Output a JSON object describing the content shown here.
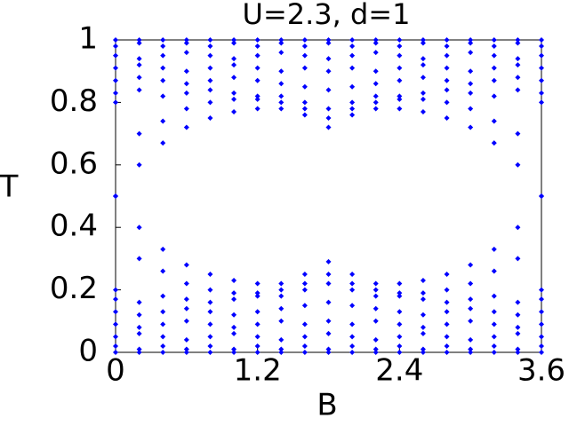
{
  "chart_data": {
    "type": "scatter",
    "title": "U=2.3, d=1",
    "xlabel": "B",
    "ylabel": "T",
    "color": "#0000ff",
    "xlim": [
      0,
      3.6
    ],
    "xticks": [
      0,
      1.2,
      2.4,
      3.6
    ],
    "ylim": [
      0,
      1
    ],
    "yticks": [
      0,
      0.2,
      0.4,
      0.6,
      0.8,
      1
    ],
    "x": [
      0,
      0.2,
      0.4,
      0.6,
      0.8,
      1.0,
      1.2,
      1.4,
      1.6,
      1.8,
      2.0,
      2.2,
      2.4,
      2.6,
      2.8,
      3.0,
      3.2,
      3.4,
      3.6
    ],
    "series": [
      {
        "values": [
          0.5,
          0.6,
          0.67,
          0.72,
          0.75,
          0.77,
          0.78,
          0.78,
          0.76,
          0.72,
          0.76,
          0.78,
          0.78,
          0.77,
          0.75,
          0.72,
          0.67,
          0.6,
          0.5
        ]
      },
      {
        "values": [
          0.5,
          0.4,
          0.33,
          0.28,
          0.25,
          0.23,
          0.22,
          0.22,
          0.25,
          0.29,
          0.25,
          0.22,
          0.22,
          0.23,
          0.25,
          0.28,
          0.33,
          0.4,
          0.5
        ]
      },
      {
        "values": [
          0,
          0,
          0,
          0,
          0,
          0,
          0,
          0,
          0,
          0,
          0,
          0,
          0,
          0,
          0,
          0,
          0,
          0,
          0
        ]
      },
      {
        "values": [
          0.02,
          0.01,
          0.02,
          0.01,
          0.02,
          0.01,
          0.02,
          0.01,
          0.02,
          0.01,
          0.02,
          0.01,
          0.02,
          0.01,
          0.02,
          0.01,
          0.02,
          0.01,
          0.02
        ]
      },
      {
        "values": [
          0.05,
          0.06,
          0.05,
          0.04,
          0.05,
          0.06,
          0.05,
          0.04,
          0.05,
          0.06,
          0.05,
          0.04,
          0.05,
          0.06,
          0.05,
          0.04,
          0.05,
          0.06,
          0.05
        ]
      },
      {
        "values": [
          0.09,
          0.08,
          0.09,
          0.1,
          0.09,
          0.08,
          0.09,
          0.1,
          0.09,
          0.1,
          0.09,
          0.1,
          0.09,
          0.08,
          0.09,
          0.1,
          0.09,
          0.08,
          0.09
        ]
      },
      {
        "values": [
          0.13,
          0.12,
          0.13,
          0.14,
          0.13,
          0.12,
          0.13,
          0.14,
          0.15,
          0.16,
          0.15,
          0.14,
          0.13,
          0.12,
          0.13,
          0.14,
          0.13,
          0.12,
          0.13
        ]
      },
      {
        "values": [
          0.17,
          0.16,
          0.18,
          0.17,
          0.16,
          0.17,
          0.18,
          0.18,
          0.2,
          0.22,
          0.2,
          0.18,
          0.18,
          0.17,
          0.16,
          0.17,
          0.18,
          0.16,
          0.17
        ]
      },
      {
        "values": [
          0.2,
          0.3,
          0.26,
          0.22,
          0.2,
          0.19,
          0.19,
          0.2,
          0.22,
          0.25,
          0.22,
          0.2,
          0.19,
          0.19,
          0.2,
          0.22,
          0.26,
          0.3,
          0.2
        ]
      },
      {
        "values": [
          1,
          1,
          1,
          1,
          1,
          1,
          1,
          1,
          1,
          1,
          1,
          1,
          1,
          1,
          1,
          1,
          1,
          1,
          1
        ]
      },
      {
        "values": [
          0.98,
          0.99,
          0.98,
          0.99,
          0.98,
          0.99,
          0.98,
          0.99,
          0.98,
          0.99,
          0.98,
          0.99,
          0.98,
          0.99,
          0.98,
          0.99,
          0.98,
          0.99,
          0.98
        ]
      },
      {
        "values": [
          0.95,
          0.94,
          0.95,
          0.96,
          0.95,
          0.94,
          0.95,
          0.96,
          0.95,
          0.94,
          0.95,
          0.96,
          0.95,
          0.94,
          0.95,
          0.96,
          0.95,
          0.94,
          0.95
        ]
      },
      {
        "values": [
          0.91,
          0.92,
          0.91,
          0.9,
          0.91,
          0.92,
          0.91,
          0.9,
          0.91,
          0.9,
          0.91,
          0.9,
          0.91,
          0.92,
          0.91,
          0.9,
          0.91,
          0.92,
          0.91
        ]
      },
      {
        "values": [
          0.87,
          0.88,
          0.87,
          0.86,
          0.87,
          0.88,
          0.87,
          0.86,
          0.85,
          0.84,
          0.85,
          0.86,
          0.87,
          0.88,
          0.87,
          0.86,
          0.87,
          0.88,
          0.87
        ]
      },
      {
        "values": [
          0.83,
          0.84,
          0.82,
          0.83,
          0.84,
          0.83,
          0.82,
          0.82,
          0.8,
          0.78,
          0.8,
          0.82,
          0.82,
          0.83,
          0.84,
          0.83,
          0.82,
          0.84,
          0.83
        ]
      },
      {
        "values": [
          0.8,
          0.7,
          0.74,
          0.78,
          0.8,
          0.81,
          0.81,
          0.8,
          0.78,
          0.75,
          0.78,
          0.8,
          0.81,
          0.81,
          0.8,
          0.78,
          0.74,
          0.7,
          0.8
        ]
      }
    ]
  }
}
